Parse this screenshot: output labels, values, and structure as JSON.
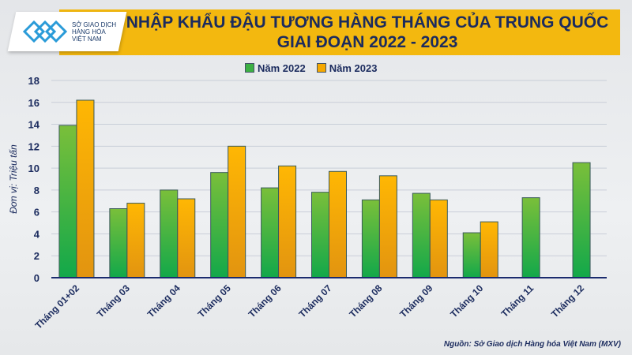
{
  "header": {
    "title_line1": "NHẬP KHẨU ĐẬU TƯƠNG HÀNG THÁNG CỦA TRUNG QUỐC",
    "title_line2": "GIAI ĐOẠN 2022 - 2023",
    "logo_text": [
      "SỞ GIAO DỊCH",
      "HÀNG HÓA",
      "VIỆT NAM"
    ]
  },
  "source": "Nguồn: Sở Giao dịch Hàng hóa Việt Nam (MXV)",
  "chart_data": {
    "type": "bar",
    "title": "NHẬP KHẨU ĐẬU TƯƠNG HÀNG THÁNG CỦA TRUNG QUỐC GIAI ĐOẠN 2022 - 2023",
    "ylabel": "Đơn vị: Triệu tấn",
    "xlabel": "",
    "ylim": [
      0,
      18
    ],
    "yticks": [
      0,
      2,
      4,
      6,
      8,
      10,
      12,
      14,
      16,
      18
    ],
    "grid": true,
    "legend": "top-center",
    "categories": [
      "Tháng 01+02",
      "Tháng 03",
      "Tháng 04",
      "Tháng 05",
      "Tháng 06",
      "Tháng 07",
      "Tháng 08",
      "Tháng 09",
      "Tháng 10",
      "Tháng 11",
      "Tháng 12"
    ],
    "series": [
      {
        "name": "Năm 2022",
        "color": "#3cb043",
        "values": [
          13.9,
          6.3,
          8.0,
          9.6,
          8.2,
          7.8,
          7.1,
          7.7,
          4.1,
          7.3,
          10.5
        ]
      },
      {
        "name": "Năm 2023",
        "color": "#f5a800",
        "values": [
          16.2,
          6.8,
          7.2,
          12.0,
          10.2,
          9.7,
          9.3,
          7.1,
          5.1,
          null,
          null
        ]
      }
    ]
  }
}
